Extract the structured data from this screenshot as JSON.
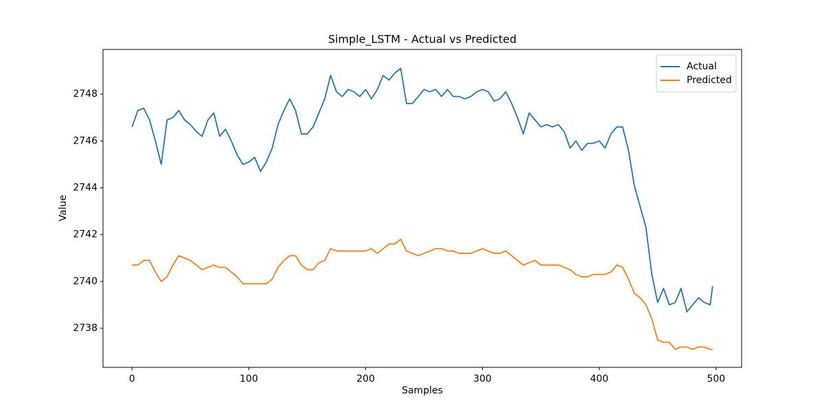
{
  "chart_data": {
    "type": "line",
    "title": "Simple_LSTM - Actual vs Predicted",
    "x_label": "Samples",
    "y_label": "Value",
    "x": [
      0,
      5,
      10,
      15,
      20,
      25,
      30,
      35,
      40,
      45,
      50,
      55,
      60,
      65,
      70,
      75,
      80,
      85,
      90,
      95,
      100,
      105,
      110,
      115,
      120,
      125,
      130,
      135,
      140,
      145,
      150,
      155,
      160,
      165,
      170,
      175,
      180,
      185,
      190,
      195,
      200,
      205,
      210,
      215,
      220,
      225,
      230,
      235,
      240,
      245,
      250,
      255,
      260,
      265,
      270,
      275,
      280,
      285,
      290,
      295,
      300,
      305,
      310,
      315,
      320,
      325,
      330,
      335,
      340,
      345,
      350,
      355,
      360,
      365,
      370,
      375,
      380,
      385,
      390,
      395,
      400,
      405,
      410,
      415,
      420,
      425,
      430,
      435,
      440,
      445,
      450,
      455,
      460,
      465,
      470,
      475,
      480,
      485,
      490,
      495,
      497
    ],
    "series": [
      {
        "name": "Actual",
        "color": "#1f77b4",
        "values": [
          2746.6,
          2747.3,
          2747.4,
          2746.9,
          2746.0,
          2745.0,
          2746.9,
          2747.0,
          2747.3,
          2746.9,
          2746.7,
          2746.4,
          2746.2,
          2746.9,
          2747.2,
          2746.2,
          2746.5,
          2746.0,
          2745.4,
          2745.0,
          2745.1,
          2745.3,
          2744.7,
          2745.1,
          2745.7,
          2746.7,
          2747.3,
          2747.8,
          2747.3,
          2746.3,
          2746.3,
          2746.6,
          2747.2,
          2747.8,
          2748.8,
          2748.1,
          2747.9,
          2748.2,
          2748.1,
          2747.9,
          2748.2,
          2747.8,
          2748.2,
          2748.8,
          2748.6,
          2748.9,
          2749.1,
          2747.6,
          2747.6,
          2747.9,
          2748.2,
          2748.1,
          2748.2,
          2747.9,
          2748.2,
          2747.9,
          2747.9,
          2747.8,
          2747.9,
          2748.1,
          2748.2,
          2748.1,
          2747.7,
          2747.8,
          2748.1,
          2747.6,
          2747.0,
          2746.3,
          2747.2,
          2746.9,
          2746.6,
          2746.7,
          2746.6,
          2746.7,
          2746.4,
          2745.7,
          2746.0,
          2745.6,
          2745.9,
          2745.9,
          2746.0,
          2745.7,
          2746.3,
          2746.6,
          2746.6,
          2745.6,
          2744.1,
          2743.2,
          2742.3,
          2740.3,
          2739.1,
          2739.7,
          2739.0,
          2739.1,
          2739.7,
          2738.7,
          2739.0,
          2739.3,
          2739.1,
          2739.0,
          2739.8
        ]
      },
      {
        "name": "Predicted",
        "color": "#ff7f0e",
        "values": [
          2740.7,
          2740.7,
          2740.9,
          2740.9,
          2740.4,
          2740.0,
          2740.2,
          2740.7,
          2741.1,
          2741.0,
          2740.9,
          2740.7,
          2740.5,
          2740.6,
          2740.7,
          2740.6,
          2740.6,
          2740.4,
          2740.2,
          2739.9,
          2739.9,
          2739.9,
          2739.9,
          2739.9,
          2740.1,
          2740.6,
          2740.9,
          2741.1,
          2741.1,
          2740.7,
          2740.5,
          2740.5,
          2740.8,
          2740.9,
          2741.4,
          2741.3,
          2741.3,
          2741.3,
          2741.3,
          2741.3,
          2741.3,
          2741.4,
          2741.2,
          2741.4,
          2741.6,
          2741.6,
          2741.8,
          2741.3,
          2741.2,
          2741.1,
          2741.2,
          2741.3,
          2741.4,
          2741.4,
          2741.3,
          2741.3,
          2741.2,
          2741.2,
          2741.2,
          2741.3,
          2741.4,
          2741.3,
          2741.2,
          2741.2,
          2741.3,
          2741.1,
          2740.9,
          2740.7,
          2740.8,
          2740.9,
          2740.7,
          2740.7,
          2740.7,
          2740.7,
          2740.6,
          2740.5,
          2740.3,
          2740.2,
          2740.2,
          2740.3,
          2740.3,
          2740.3,
          2740.4,
          2740.7,
          2740.6,
          2740.1,
          2739.5,
          2739.3,
          2739.0,
          2738.4,
          2737.5,
          2737.4,
          2737.4,
          2737.1,
          2737.2,
          2737.2,
          2737.1,
          2737.2,
          2737.2,
          2737.1,
          2737.1
        ]
      }
    ],
    "xlim": [
      -24.85,
      521.85
    ],
    "ylim": [
      2736.33,
      2749.91
    ],
    "xticks": [
      0,
      100,
      200,
      300,
      400,
      500
    ],
    "yticks": [
      2738,
      2740,
      2742,
      2744,
      2746,
      2748
    ],
    "grid": false,
    "legend": "upper right"
  }
}
